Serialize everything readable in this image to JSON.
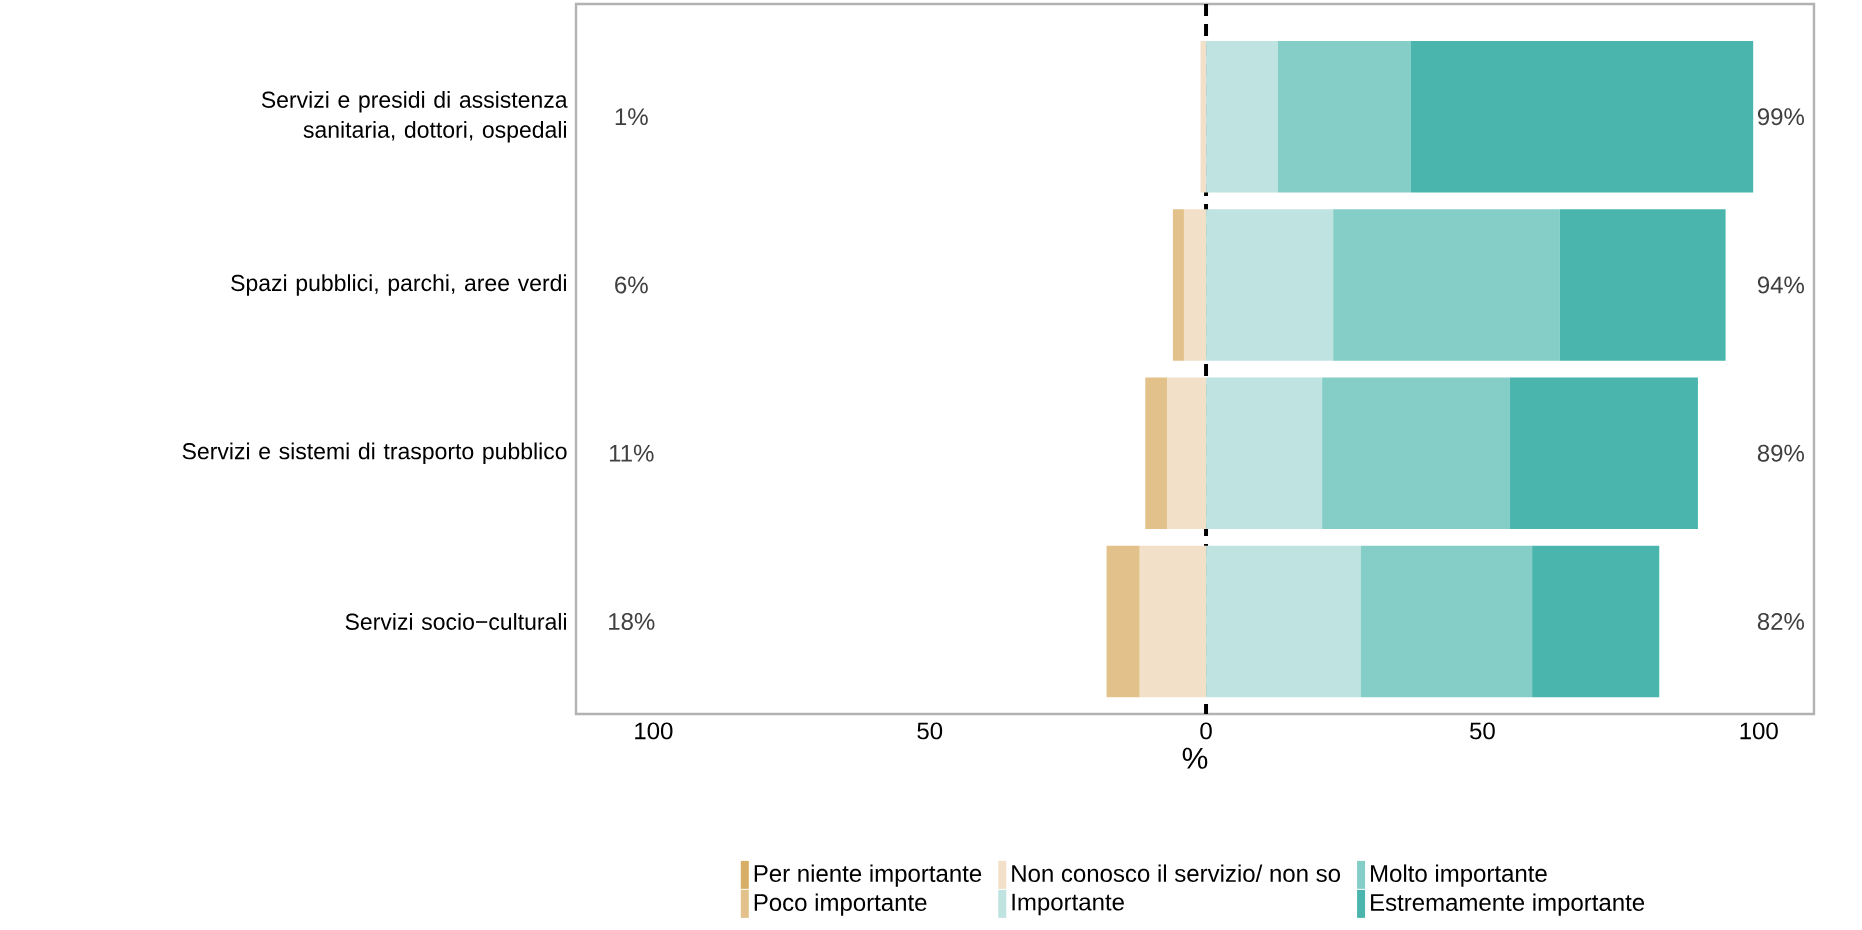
{
  "chart_data": {
    "type": "bar",
    "orientation": "horizontal",
    "stacked": true,
    "xlabel": "%",
    "categories": [
      "Servizi e presidi di assistenza sanitaria, dottori, ospedali",
      "Spazi pubblici, parchi, aree verdi",
      "Servizi e sistemi di trasporto pubblico",
      "Servizi socio−culturali"
    ],
    "series": [
      {
        "name": "Per niente importante",
        "color": "#d8ae66",
        "values": [
          null,
          null,
          null,
          null
        ]
      },
      {
        "name": "Poco importante",
        "color": "#e3c18a",
        "values": [
          null,
          -2,
          -4,
          -6
        ]
      },
      {
        "name": "Non conosco il servizio/ non so",
        "color": "#f2e0c8",
        "values": [
          -1,
          -4,
          -7,
          -12
        ]
      },
      {
        "name": "Importante",
        "color": "#bfe3e0",
        "values": [
          13,
          23,
          21,
          28
        ]
      },
      {
        "name": "Molto importante",
        "color": "#84cec7",
        "values": [
          24,
          41,
          34,
          31
        ]
      },
      {
        "name": "Estremamente importante",
        "color": "#4ab5ad",
        "values": [
          62,
          30,
          34,
          23
        ]
      }
    ],
    "xlim": [
      -114,
      110
    ],
    "xticks": [
      {
        "value": -100,
        "label": "100"
      },
      {
        "value": -50,
        "label": "50"
      },
      0,
      50,
      100
    ],
    "ref_lines": [
      {
        "axis": "x",
        "value": 0,
        "color": "#000000",
        "line_style": "dashed"
      }
    ],
    "annotations": [
      "1%",
      "99%",
      "6%",
      "94%",
      "11%",
      "89%",
      "18%",
      "82%"
    ],
    "legend": "bottom"
  }
}
